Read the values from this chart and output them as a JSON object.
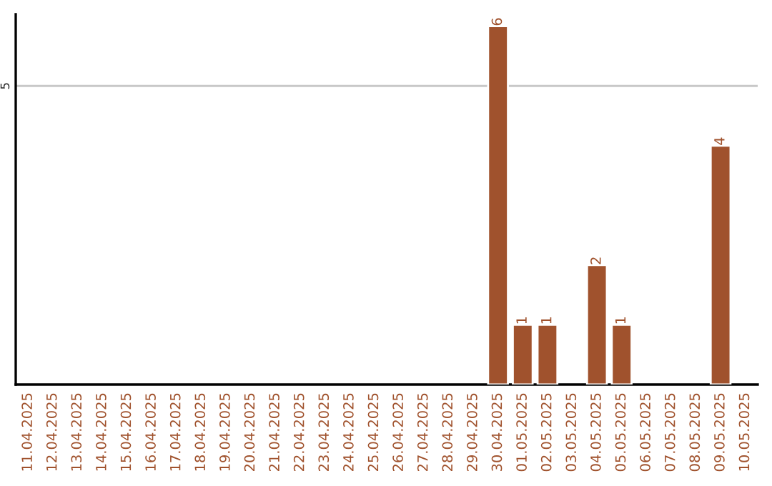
{
  "chart_data": {
    "type": "bar",
    "categories": [
      "11.04.2025",
      "12.04.2025",
      "13.04.2025",
      "14.04.2025",
      "15.04.2025",
      "16.04.2025",
      "17.04.2025",
      "18.04.2025",
      "19.04.2025",
      "20.04.2025",
      "21.04.2025",
      "22.04.2025",
      "23.04.2025",
      "24.04.2025",
      "25.04.2025",
      "26.04.2025",
      "27.04.2025",
      "28.04.2025",
      "29.04.2025",
      "30.04.2025",
      "01.05.2025",
      "02.05.2025",
      "03.05.2025",
      "04.05.2025",
      "05.05.2025",
      "06.05.2025",
      "07.05.2025",
      "08.05.2025",
      "09.05.2025",
      "10.05.2025"
    ],
    "values": [
      null,
      null,
      null,
      null,
      null,
      null,
      null,
      null,
      null,
      null,
      null,
      null,
      null,
      null,
      null,
      null,
      null,
      null,
      null,
      6,
      1,
      1,
      null,
      2,
      1,
      null,
      null,
      null,
      4,
      null
    ],
    "color": "#a0522d",
    "ylim": [
      0,
      6.2
    ],
    "yticks": [
      5
    ],
    "grid": "y",
    "data_labels": true,
    "legend": false
  }
}
